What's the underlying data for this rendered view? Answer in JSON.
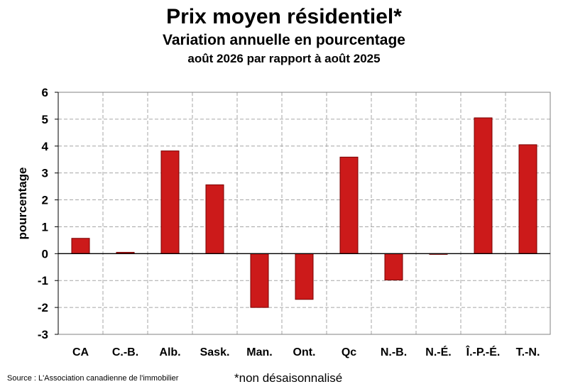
{
  "chart_data": {
    "type": "bar",
    "title": "Prix moyen résidentiel*",
    "subtitle": "Variation annuelle en pourcentage",
    "subtitle2": "août 2026 par rapport à août 2025",
    "xlabel": "",
    "ylabel": "pourcentage",
    "ylim": [
      -3,
      6
    ],
    "yticks": [
      6,
      5,
      4,
      3,
      2,
      1,
      0,
      -1,
      -2,
      -3
    ],
    "grid": true,
    "categories": [
      "CA",
      "C.-B.",
      "Alb.",
      "Sask.",
      "Man.",
      "Ont.",
      "Qc",
      "N.-B.",
      "N.-É.",
      "Î.-P.-É.",
      "T.-N."
    ],
    "values": [
      0.57,
      0.05,
      3.82,
      2.56,
      -2.0,
      -1.7,
      3.59,
      -0.98,
      -0.02,
      5.05,
      4.05
    ],
    "colors": {
      "bar": "#cc1a1a",
      "bar_border": "#7a0000",
      "grid": "#a6a6a6"
    }
  },
  "footer": {
    "source": "Source : L'Association canadienne de l'immobilier",
    "note": "*non désaisonnalisé"
  }
}
